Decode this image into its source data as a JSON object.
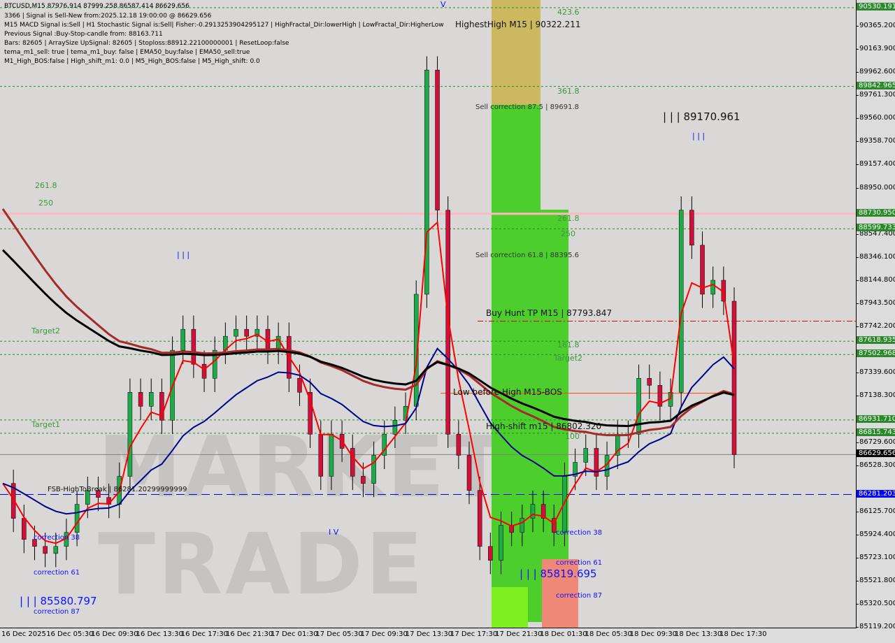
{
  "header": {
    "symbol_line": "BTCUSD,M15  87976.914 87999.258 86587.414 86629.656",
    "lines": [
      "3366 | Signal is Sell-New from:2025.12.18 19:00:00 @ 86629.656",
      "M15 MACD Signal is:Sell | H1 Stochastic Signal is:Sell| Fisher:-0.2913253904295127 | HighFractal_Dir:lowerHigh | LowFractal_Dir:HigherLow",
      "Previous Signal :Buy-Stop-candle from: 88163.711",
      "Bars: 82605 | ArraySize UpSignal: 82605 | Stoploss:88912.22100000001 | ResetLoop:false",
      "tema_m1_sell: true | tema_m1_buy: false | EMA50_buy:false | EMA50_sell:true",
      "M1_High_BOS:false | High_shift_m1: 0.0 | M5_High_BOS:false | M5_High_shift: 0.0"
    ]
  },
  "watermark": "MARKETS TRADE",
  "colors": {
    "bull": "#1faa4a",
    "bear": "#d0103a",
    "ema_fast": "#ff0000",
    "ema_mid": "#a52a2a",
    "ema_slow": "#000000",
    "ema_blue": "#00008b",
    "level": "#2a8a2a",
    "current": "#000000",
    "blue_level": "#0000ff"
  },
  "chart_data": {
    "type": "candlestick",
    "symbol": "BTCUSD",
    "timeframe": "M15",
    "ylim": [
      85119.2,
      90597
    ],
    "y_ticks": [
      "90365.200",
      "90163.900",
      "89962.600",
      "89761.300",
      "89560.000",
      "89358.700",
      "89157.400",
      "88950.000",
      "88547.400",
      "88346.100",
      "88144.800",
      "87943.500",
      "87742.200",
      "87339.600",
      "87138.300",
      "86729.600",
      "86528.300",
      "86125.700",
      "85924.400",
      "85723.100",
      "85521.800",
      "85320.500",
      "85119.200"
    ],
    "x_ticks": [
      "16 Dec 2025",
      "16 Dec 05:30",
      "16 Dec 09:30",
      "16 Dec 13:30",
      "16 Dec 17:30",
      "16 Dec 21:30",
      "17 Dec 01:30",
      "17 Dec 05:30",
      "17 Dec 09:30",
      "17 Dec 13:30",
      "17 Dec 17:30",
      "17 Dec 21:30",
      "18 Dec 01:30",
      "18 Dec 05:30",
      "18 Dec 09:30",
      "18 Dec 13:30",
      "18 Dec 17:30"
    ],
    "closes": [
      86378,
      86073,
      85889,
      85828,
      85767,
      85828,
      85950,
      86195,
      86317,
      86256,
      86195,
      86440,
      87173,
      87051,
      87173,
      86929,
      87540,
      87723,
      87418,
      87295,
      87540,
      87662,
      87723,
      87662,
      87723,
      87540,
      87662,
      87295,
      87173,
      86807,
      86440,
      86807,
      86684,
      86440,
      86378,
      86623,
      86807,
      86929,
      87051,
      88029,
      89986,
      88763,
      86807,
      86623,
      86317,
      85828,
      85706,
      86012,
      85950,
      86073,
      86195,
      86073,
      85950,
      86440,
      86562,
      86684,
      86440,
      86623,
      86807,
      86807,
      87295,
      87234,
      87051,
      87173,
      88763,
      88457,
      88029,
      88151,
      87968,
      86630
    ],
    "levels": [
      {
        "price": "90530.191",
        "style": "green-dash"
      },
      {
        "price": "89842.965",
        "style": "green-dash"
      },
      {
        "price": "88730.950",
        "style": "pink"
      },
      {
        "price": "88599.733",
        "style": "green-dash"
      },
      {
        "price": "87618.935",
        "style": "green-dash"
      },
      {
        "price": "87502.968",
        "style": "green-dash"
      },
      {
        "price": "86931.710",
        "style": "green-dash"
      },
      {
        "price": "86815.743",
        "style": "green-dash"
      },
      {
        "price": "86629.656",
        "style": "current"
      },
      {
        "price": "86281.203",
        "style": "blue-dash"
      }
    ],
    "annotations": {
      "highest_high": "HighestHigh   M15 | 90322.211",
      "f423": "423.6",
      "f361": "361.8",
      "f261a": "261.8",
      "f250a": "250",
      "f261b": "261.8",
      "f250b": "250",
      "f161": "161.8",
      "f100": "100",
      "sell875": "Sell correction 87.5 | 89691.8",
      "sell618": "Sell correction 61.8 | 88395.6",
      "buy_hunt": "Buy Hunt TP M15 | 87793.847",
      "target2a": "Target2",
      "target2b": "Target2",
      "target1": "Target1",
      "low_before": "Low before High   M15-BOS",
      "high_shift": "High-shift m15 | 86802.320",
      "fsb": "FSB-HighToBreak | 86281.20299999999",
      "hi_label": "| | | 89170.961",
      "lo_label1": "| | | 85819.695",
      "lo_label2": "| | | 85580.797",
      "c38a": "correction 38",
      "c61a": "correction 61",
      "c87a": "correction 87",
      "c38b": "correction 38",
      "c61b": "correction 61",
      "c87b": "correction 87",
      "wave_iii": "| | |",
      "wave_iv": "I V",
      "wave_v": "V"
    }
  }
}
